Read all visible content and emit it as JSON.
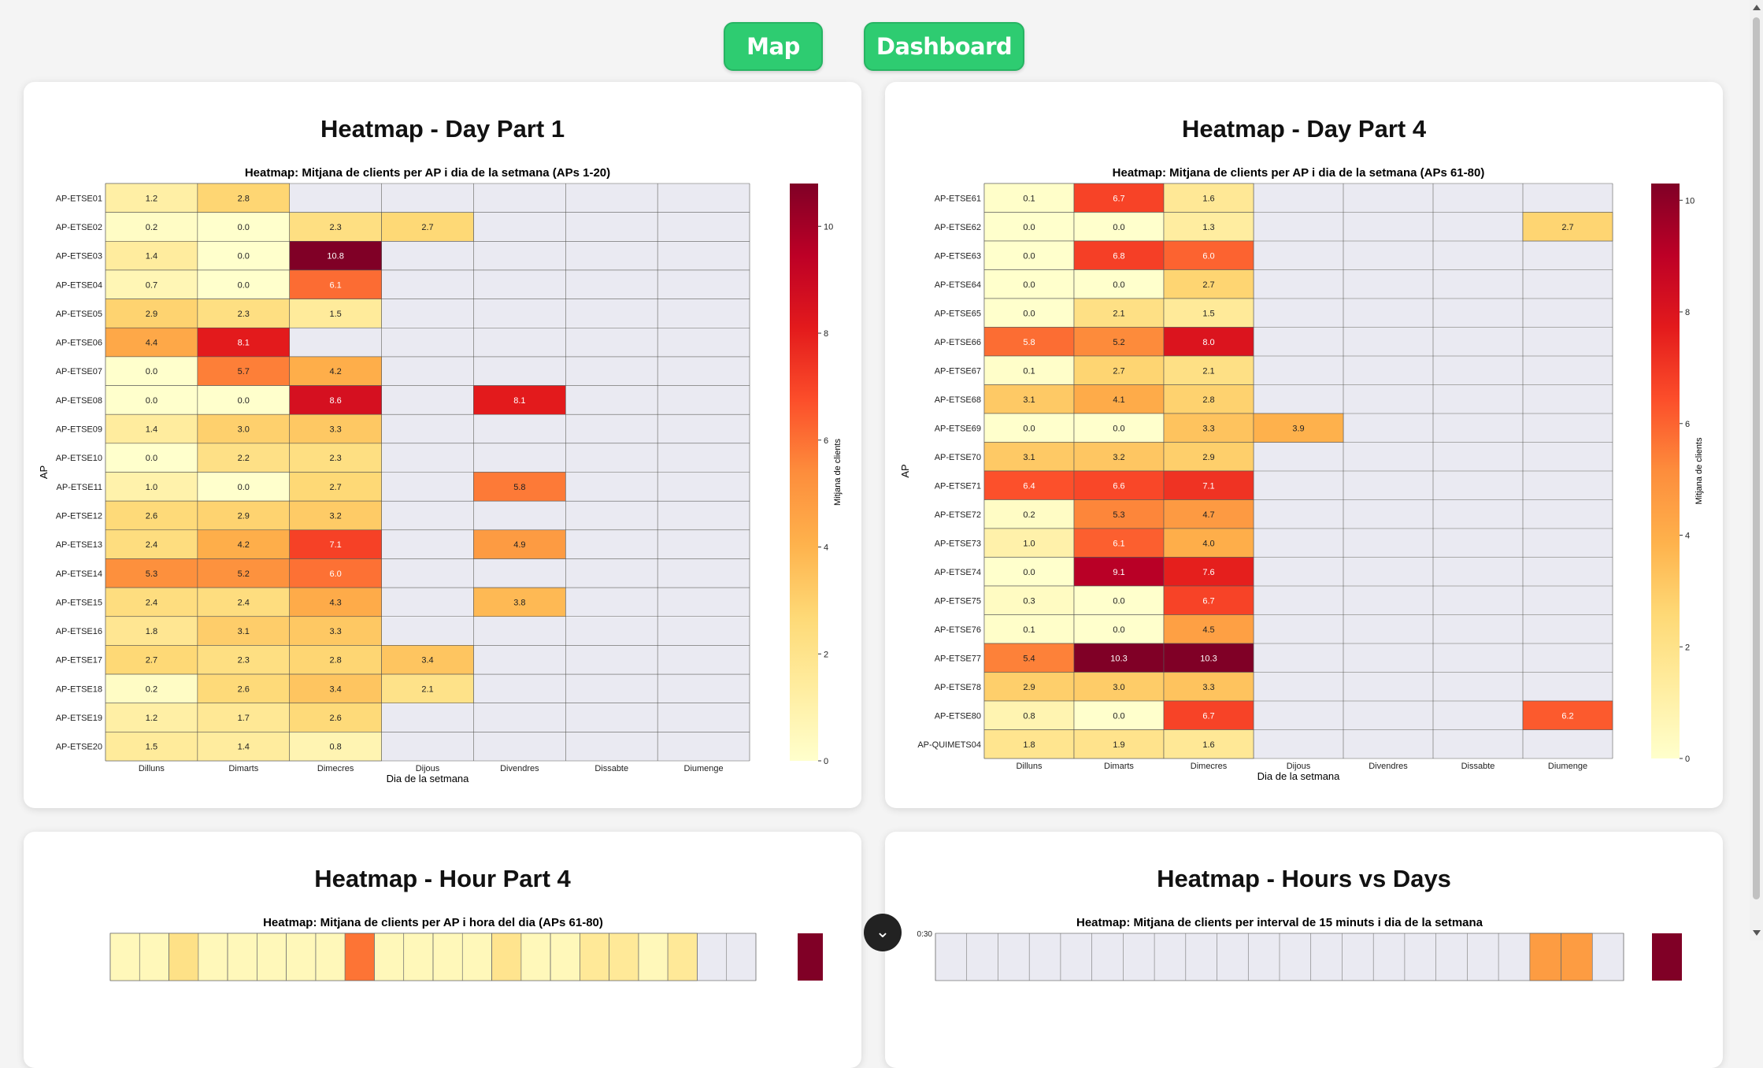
{
  "nav": {
    "map_label": "Map",
    "dashboard_label": "Dashboard"
  },
  "cards": {
    "c1": {
      "title": "Heatmap - Day Part 1"
    },
    "c2": {
      "title": "Heatmap - Day Part 4"
    },
    "c3": {
      "title": "Heatmap - Hour Part 4"
    },
    "c4": {
      "title": "Heatmap - Hours vs Days"
    }
  },
  "fab": {
    "icon": "chevron-down-icon",
    "glyph": "⌄"
  },
  "colors": {
    "nav_green": "#2ecc71",
    "nan_bg": "#eaeaf2"
  },
  "chart_data": [
    {
      "type": "heatmap",
      "title": "Heatmap: Mitjana de clients per AP i dia de la setmana (APs 1-20)",
      "xlabel": "Dia de la setmana",
      "ylabel": "AP",
      "colorbar_label": "Mitjana de clients",
      "zlim": [
        0,
        10.8
      ],
      "colorbar_ticks": [
        0,
        2,
        4,
        6,
        8,
        10
      ],
      "x": [
        "Dilluns",
        "Dimarts",
        "Dimecres",
        "Dijous",
        "Divendres",
        "Dissabte",
        "Diumenge"
      ],
      "y": [
        "AP-ETSE01",
        "AP-ETSE02",
        "AP-ETSE03",
        "AP-ETSE04",
        "AP-ETSE05",
        "AP-ETSE06",
        "AP-ETSE07",
        "AP-ETSE08",
        "AP-ETSE09",
        "AP-ETSE10",
        "AP-ETSE11",
        "AP-ETSE12",
        "AP-ETSE13",
        "AP-ETSE14",
        "AP-ETSE15",
        "AP-ETSE16",
        "AP-ETSE17",
        "AP-ETSE18",
        "AP-ETSE19",
        "AP-ETSE20"
      ],
      "values": [
        [
          1.2,
          2.8,
          null,
          null,
          null,
          null,
          null
        ],
        [
          0.2,
          0.0,
          2.3,
          2.7,
          null,
          null,
          null
        ],
        [
          1.4,
          0.0,
          10.8,
          null,
          null,
          null,
          null
        ],
        [
          0.7,
          0.0,
          6.1,
          null,
          null,
          null,
          null
        ],
        [
          2.9,
          2.3,
          1.5,
          null,
          null,
          null,
          null
        ],
        [
          4.4,
          8.1,
          null,
          null,
          null,
          null,
          null
        ],
        [
          0.0,
          5.7,
          4.2,
          null,
          null,
          null,
          null
        ],
        [
          0.0,
          0.0,
          8.6,
          null,
          8.1,
          null,
          null
        ],
        [
          1.4,
          3.0,
          3.3,
          null,
          null,
          null,
          null
        ],
        [
          0.0,
          2.2,
          2.3,
          null,
          null,
          null,
          null
        ],
        [
          1.0,
          0.0,
          2.7,
          null,
          5.8,
          null,
          null
        ],
        [
          2.6,
          2.9,
          3.2,
          null,
          null,
          null,
          null
        ],
        [
          2.4,
          4.2,
          7.1,
          null,
          4.9,
          null,
          null
        ],
        [
          5.3,
          5.2,
          6.0,
          null,
          null,
          null,
          null
        ],
        [
          2.4,
          2.4,
          4.3,
          null,
          3.8,
          null,
          null
        ],
        [
          1.8,
          3.1,
          3.3,
          null,
          null,
          null,
          null
        ],
        [
          2.7,
          2.3,
          2.8,
          3.4,
          null,
          null,
          null
        ],
        [
          0.2,
          2.6,
          3.4,
          2.1,
          null,
          null,
          null
        ],
        [
          1.2,
          1.7,
          2.6,
          null,
          null,
          null,
          null
        ],
        [
          1.5,
          1.4,
          0.8,
          null,
          null,
          null,
          null
        ]
      ]
    },
    {
      "type": "heatmap",
      "title": "Heatmap: Mitjana de clients per AP i dia de la setmana (APs 61-80)",
      "xlabel": "Dia de la setmana",
      "ylabel": "AP",
      "colorbar_label": "Mitjana de clients",
      "zlim": [
        0,
        10.3
      ],
      "colorbar_ticks": [
        0,
        2,
        4,
        6,
        8,
        10
      ],
      "x": [
        "Dilluns",
        "Dimarts",
        "Dimecres",
        "Dijous",
        "Divendres",
        "Dissabte",
        "Diumenge"
      ],
      "y": [
        "AP-ETSE61",
        "AP-ETSE62",
        "AP-ETSE63",
        "AP-ETSE64",
        "AP-ETSE65",
        "AP-ETSE66",
        "AP-ETSE67",
        "AP-ETSE68",
        "AP-ETSE69",
        "AP-ETSE70",
        "AP-ETSE71",
        "AP-ETSE72",
        "AP-ETSE73",
        "AP-ETSE74",
        "AP-ETSE75",
        "AP-ETSE76",
        "AP-ETSE77",
        "AP-ETSE78",
        "AP-ETSE80",
        "AP-QUIMETS04"
      ],
      "values": [
        [
          0.1,
          6.7,
          1.6,
          null,
          null,
          null,
          null
        ],
        [
          0.0,
          0.0,
          1.3,
          null,
          null,
          null,
          2.7
        ],
        [
          0.0,
          6.8,
          6.0,
          null,
          null,
          null,
          null
        ],
        [
          0.0,
          0.0,
          2.7,
          null,
          null,
          null,
          null
        ],
        [
          0.0,
          2.1,
          1.5,
          null,
          null,
          null,
          null
        ],
        [
          5.8,
          5.2,
          8.0,
          null,
          null,
          null,
          null
        ],
        [
          0.1,
          2.7,
          2.1,
          null,
          null,
          null,
          null
        ],
        [
          3.1,
          4.1,
          2.8,
          null,
          null,
          null,
          null
        ],
        [
          0.0,
          0.0,
          3.3,
          3.9,
          null,
          null,
          null
        ],
        [
          3.1,
          3.2,
          2.9,
          null,
          null,
          null,
          null
        ],
        [
          6.4,
          6.6,
          7.1,
          null,
          null,
          null,
          null
        ],
        [
          0.2,
          5.3,
          4.7,
          null,
          null,
          null,
          null
        ],
        [
          1.0,
          6.1,
          4.0,
          null,
          null,
          null,
          null
        ],
        [
          0.0,
          9.1,
          7.6,
          null,
          null,
          null,
          null
        ],
        [
          0.3,
          0.0,
          6.7,
          null,
          null,
          null,
          null
        ],
        [
          0.1,
          0.0,
          4.5,
          null,
          null,
          null,
          null
        ],
        [
          5.4,
          10.3,
          10.3,
          null,
          null,
          null,
          null
        ],
        [
          2.9,
          3.0,
          3.3,
          null,
          null,
          null,
          null
        ],
        [
          0.8,
          0.0,
          6.7,
          null,
          null,
          null,
          6.2
        ],
        [
          1.8,
          1.9,
          1.6,
          null,
          null,
          null,
          null
        ]
      ]
    },
    {
      "type": "heatmap",
      "title": "Heatmap: Mitjana de clients per AP i hora del dia (APs 61-80)"
    },
    {
      "type": "heatmap",
      "title": "Heatmap: Mitjana de clients per interval de 15 minuts i dia de la setmana",
      "first_row_label": "0:30"
    }
  ]
}
